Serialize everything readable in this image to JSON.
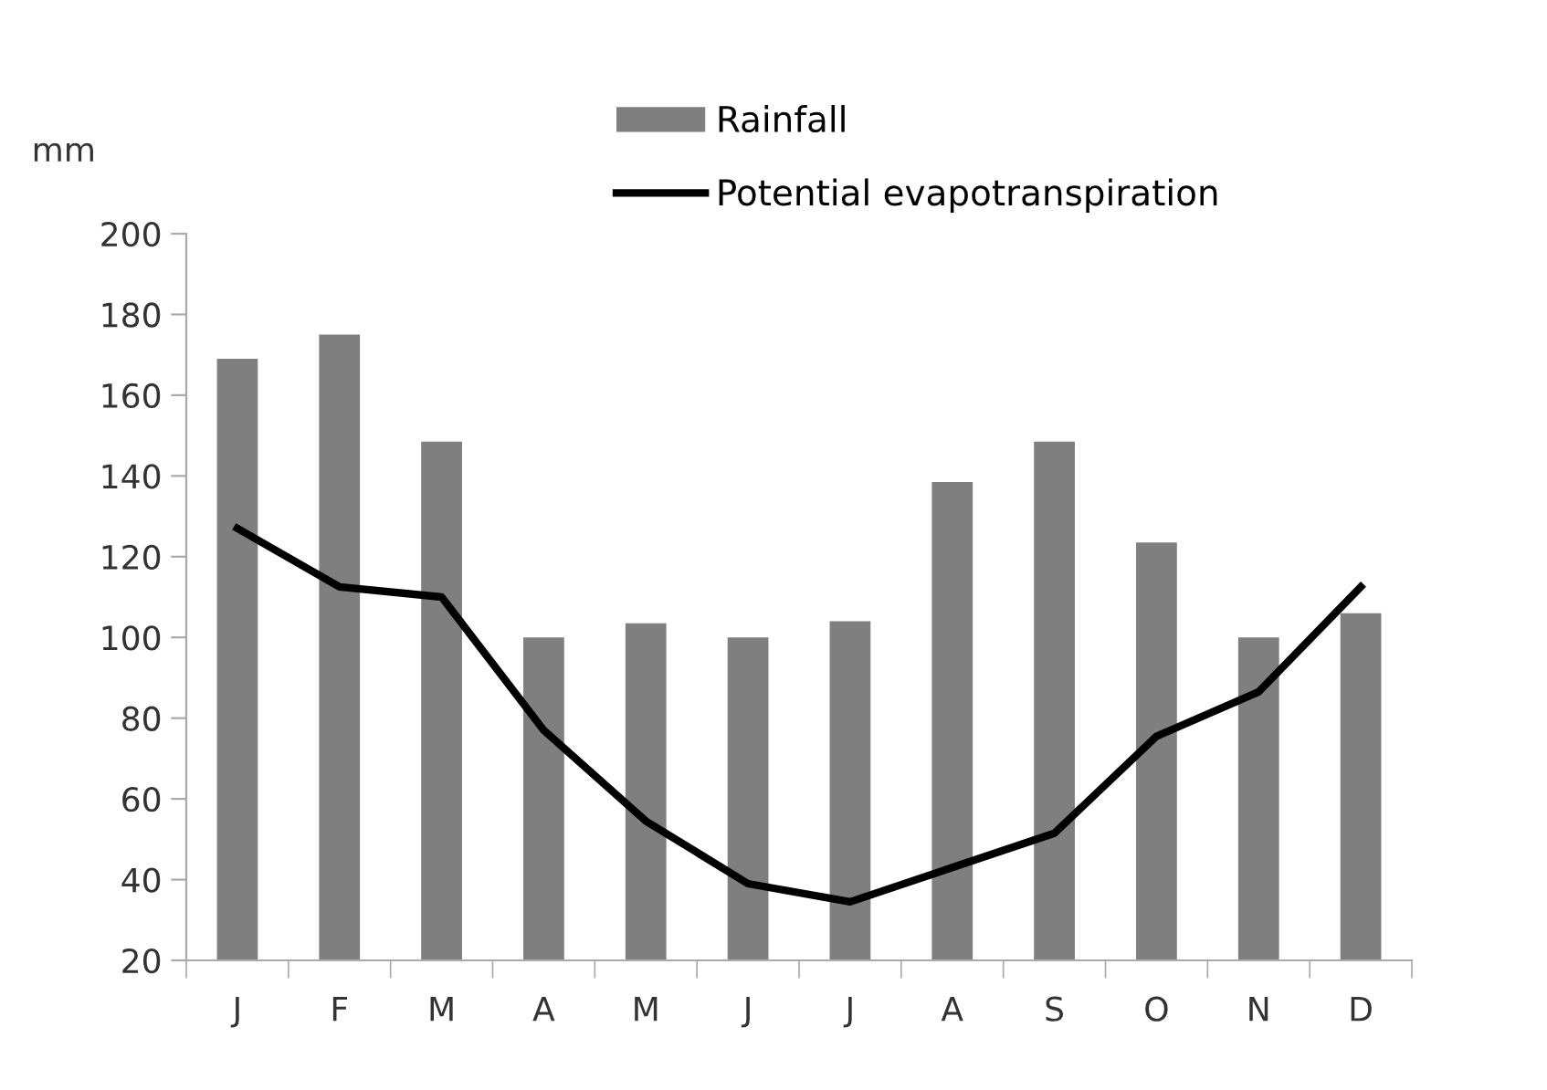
{
  "chart_data": {
    "type": "bar",
    "ylabel": "mm",
    "categories": [
      "J",
      "F",
      "M",
      "A",
      "M",
      "J",
      "J",
      "A",
      "S",
      "O",
      "N",
      "D"
    ],
    "series": [
      {
        "name": "Rainfall",
        "color": "#7f7f7f",
        "values": [
          169,
          175,
          148.5,
          100,
          103.5,
          100,
          104,
          138.5,
          148.5,
          123.5,
          100,
          106
        ]
      },
      {
        "name": "Potential evapotranspiration",
        "type": "line",
        "color": "#000000",
        "values": [
          127,
          112.5,
          110,
          77,
          54.5,
          39,
          34.5,
          43,
          51.5,
          75.5,
          86.5,
          112.5
        ]
      }
    ],
    "ylim": [
      20,
      200
    ],
    "yticks": [
      20,
      40,
      60,
      80,
      100,
      120,
      140,
      160,
      180,
      200
    ],
    "grid": false,
    "legend": "top",
    "marker": "none",
    "line_style": "solid"
  }
}
